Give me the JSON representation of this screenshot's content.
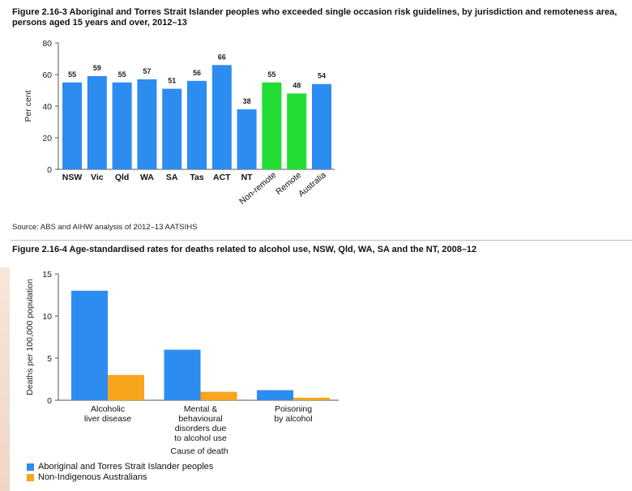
{
  "figure1": {
    "title": "Figure 2.16-3 Aboriginal and Torres Strait Islander peoples who exceeded single occasion risk guidelines, by jurisdiction and remoteness area, persons aged 15 years and over, 2012–13",
    "source": "Source: ABS and AIHW analysis of 2012–13 AATSIHS"
  },
  "figure2": {
    "title": "Figure 2.16-4 Age-standardised rates for deaths related to alcohol use, NSW, Qld, WA, SA and the NT, 2008–12"
  },
  "colors": {
    "blue": "#2d8cf0",
    "green": "#22dd33",
    "orange": "#f7a51c",
    "axis": "#555555"
  },
  "chart_data": [
    {
      "type": "bar",
      "ylabel": "Per cent",
      "ylim": [
        0,
        80
      ],
      "yticks": [
        0,
        20,
        40,
        60,
        80
      ],
      "categories": [
        "NSW",
        "Vic",
        "Qld",
        "WA",
        "SA",
        "Tas",
        "ACT",
        "NT",
        "Non-remote",
        "Remote",
        "Australia"
      ],
      "values": [
        55,
        59,
        55,
        57,
        51,
        56,
        66,
        38,
        55,
        48,
        54
      ],
      "colors": [
        "blue",
        "blue",
        "blue",
        "blue",
        "blue",
        "blue",
        "blue",
        "blue",
        "green",
        "green",
        "blue"
      ],
      "data_labels": true
    },
    {
      "type": "bar",
      "xlabel": "Cause of death",
      "ylabel": "Deaths per 100,000 population",
      "ylim": [
        0,
        15
      ],
      "yticks": [
        0,
        5,
        10,
        15
      ],
      "categories": [
        [
          "Alcoholic",
          "liver disease"
        ],
        [
          "Mental &",
          "behavioural",
          "disorders due",
          "to alcohol use"
        ],
        [
          "Poisoning",
          "by alcohol"
        ]
      ],
      "series": [
        {
          "name": "Aboriginal and Torres Strait Islander peoples",
          "color": "blue",
          "values": [
            13,
            6,
            1.2
          ]
        },
        {
          "name": "Non-Indigenous Australians",
          "color": "orange",
          "values": [
            3,
            1,
            0.3
          ]
        }
      ],
      "legend": "bottom-left"
    }
  ]
}
